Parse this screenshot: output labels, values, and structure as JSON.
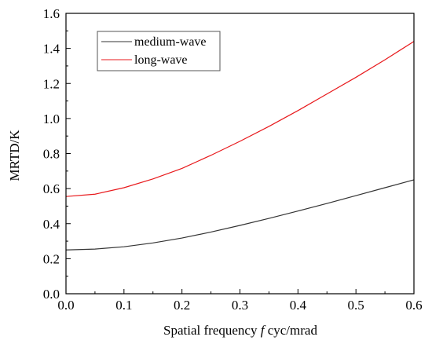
{
  "chart_data": {
    "type": "line",
    "title": "",
    "xlabel": {
      "prefix": "Spatial frequency ",
      "variable": "f",
      "suffix": " cyc/mrad"
    },
    "ylabel": "MRTD/K",
    "xlim": [
      0.0,
      0.6
    ],
    "ylim": [
      0.0,
      1.6
    ],
    "x_ticks": [
      "0.0",
      "0.1",
      "0.2",
      "0.3",
      "0.4",
      "0.5",
      "0.6"
    ],
    "y_ticks": [
      "0.0",
      "0.2",
      "0.4",
      "0.6",
      "0.8",
      "1.0",
      "1.2",
      "1.4",
      "1.6"
    ],
    "grid": false,
    "legend_position": "top-left",
    "x": [
      0.0,
      0.05,
      0.1,
      0.15,
      0.2,
      0.25,
      0.3,
      0.35,
      0.4,
      0.45,
      0.5,
      0.55,
      0.6
    ],
    "series": [
      {
        "name": "medium-wave",
        "color": "#333333",
        "values": [
          0.25,
          0.255,
          0.268,
          0.29,
          0.318,
          0.352,
          0.39,
          0.43,
          0.472,
          0.515,
          0.56,
          0.605,
          0.65
        ]
      },
      {
        "name": "long-wave",
        "color": "#e8191c",
        "values": [
          0.555,
          0.568,
          0.605,
          0.655,
          0.715,
          0.79,
          0.87,
          0.955,
          1.045,
          1.14,
          1.235,
          1.335,
          1.44
        ]
      }
    ]
  }
}
